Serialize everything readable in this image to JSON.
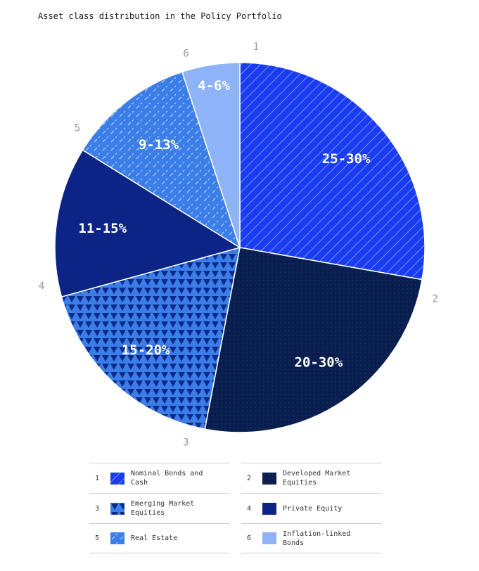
{
  "chart_data": {
    "type": "pie",
    "title": "Asset class distribution in the Policy Portfolio",
    "slices": [
      {
        "index": "1",
        "label": "Nominal Bonds and Cash",
        "range": "25-30%",
        "value": 27.5,
        "color": "#1a3cf0",
        "pattern": "diagonal-lines"
      },
      {
        "index": "2",
        "label": "Developed Market Equities",
        "range": "20-30%",
        "value": 25,
        "color": "#0a1d4f",
        "pattern": "fine-dots"
      },
      {
        "index": "3",
        "label": "Emerging Market Equities",
        "range": "15-20%",
        "value": 17.5,
        "color": "#3b7ee8",
        "pattern": "triangles"
      },
      {
        "index": "4",
        "label": "Private Equity",
        "range": "11-15%",
        "value": 13,
        "color": "#0c2485",
        "pattern": "solid"
      },
      {
        "index": "5",
        "label": "Real Estate",
        "range": "9-13%",
        "value": 11,
        "color": "#3b7ee8",
        "pattern": "dashed-diagonal"
      },
      {
        "index": "6",
        "label": "Inflation-linked Bonds",
        "range": "4-6%",
        "value": 5,
        "color": "#8fb3f7",
        "pattern": "solid"
      }
    ]
  }
}
